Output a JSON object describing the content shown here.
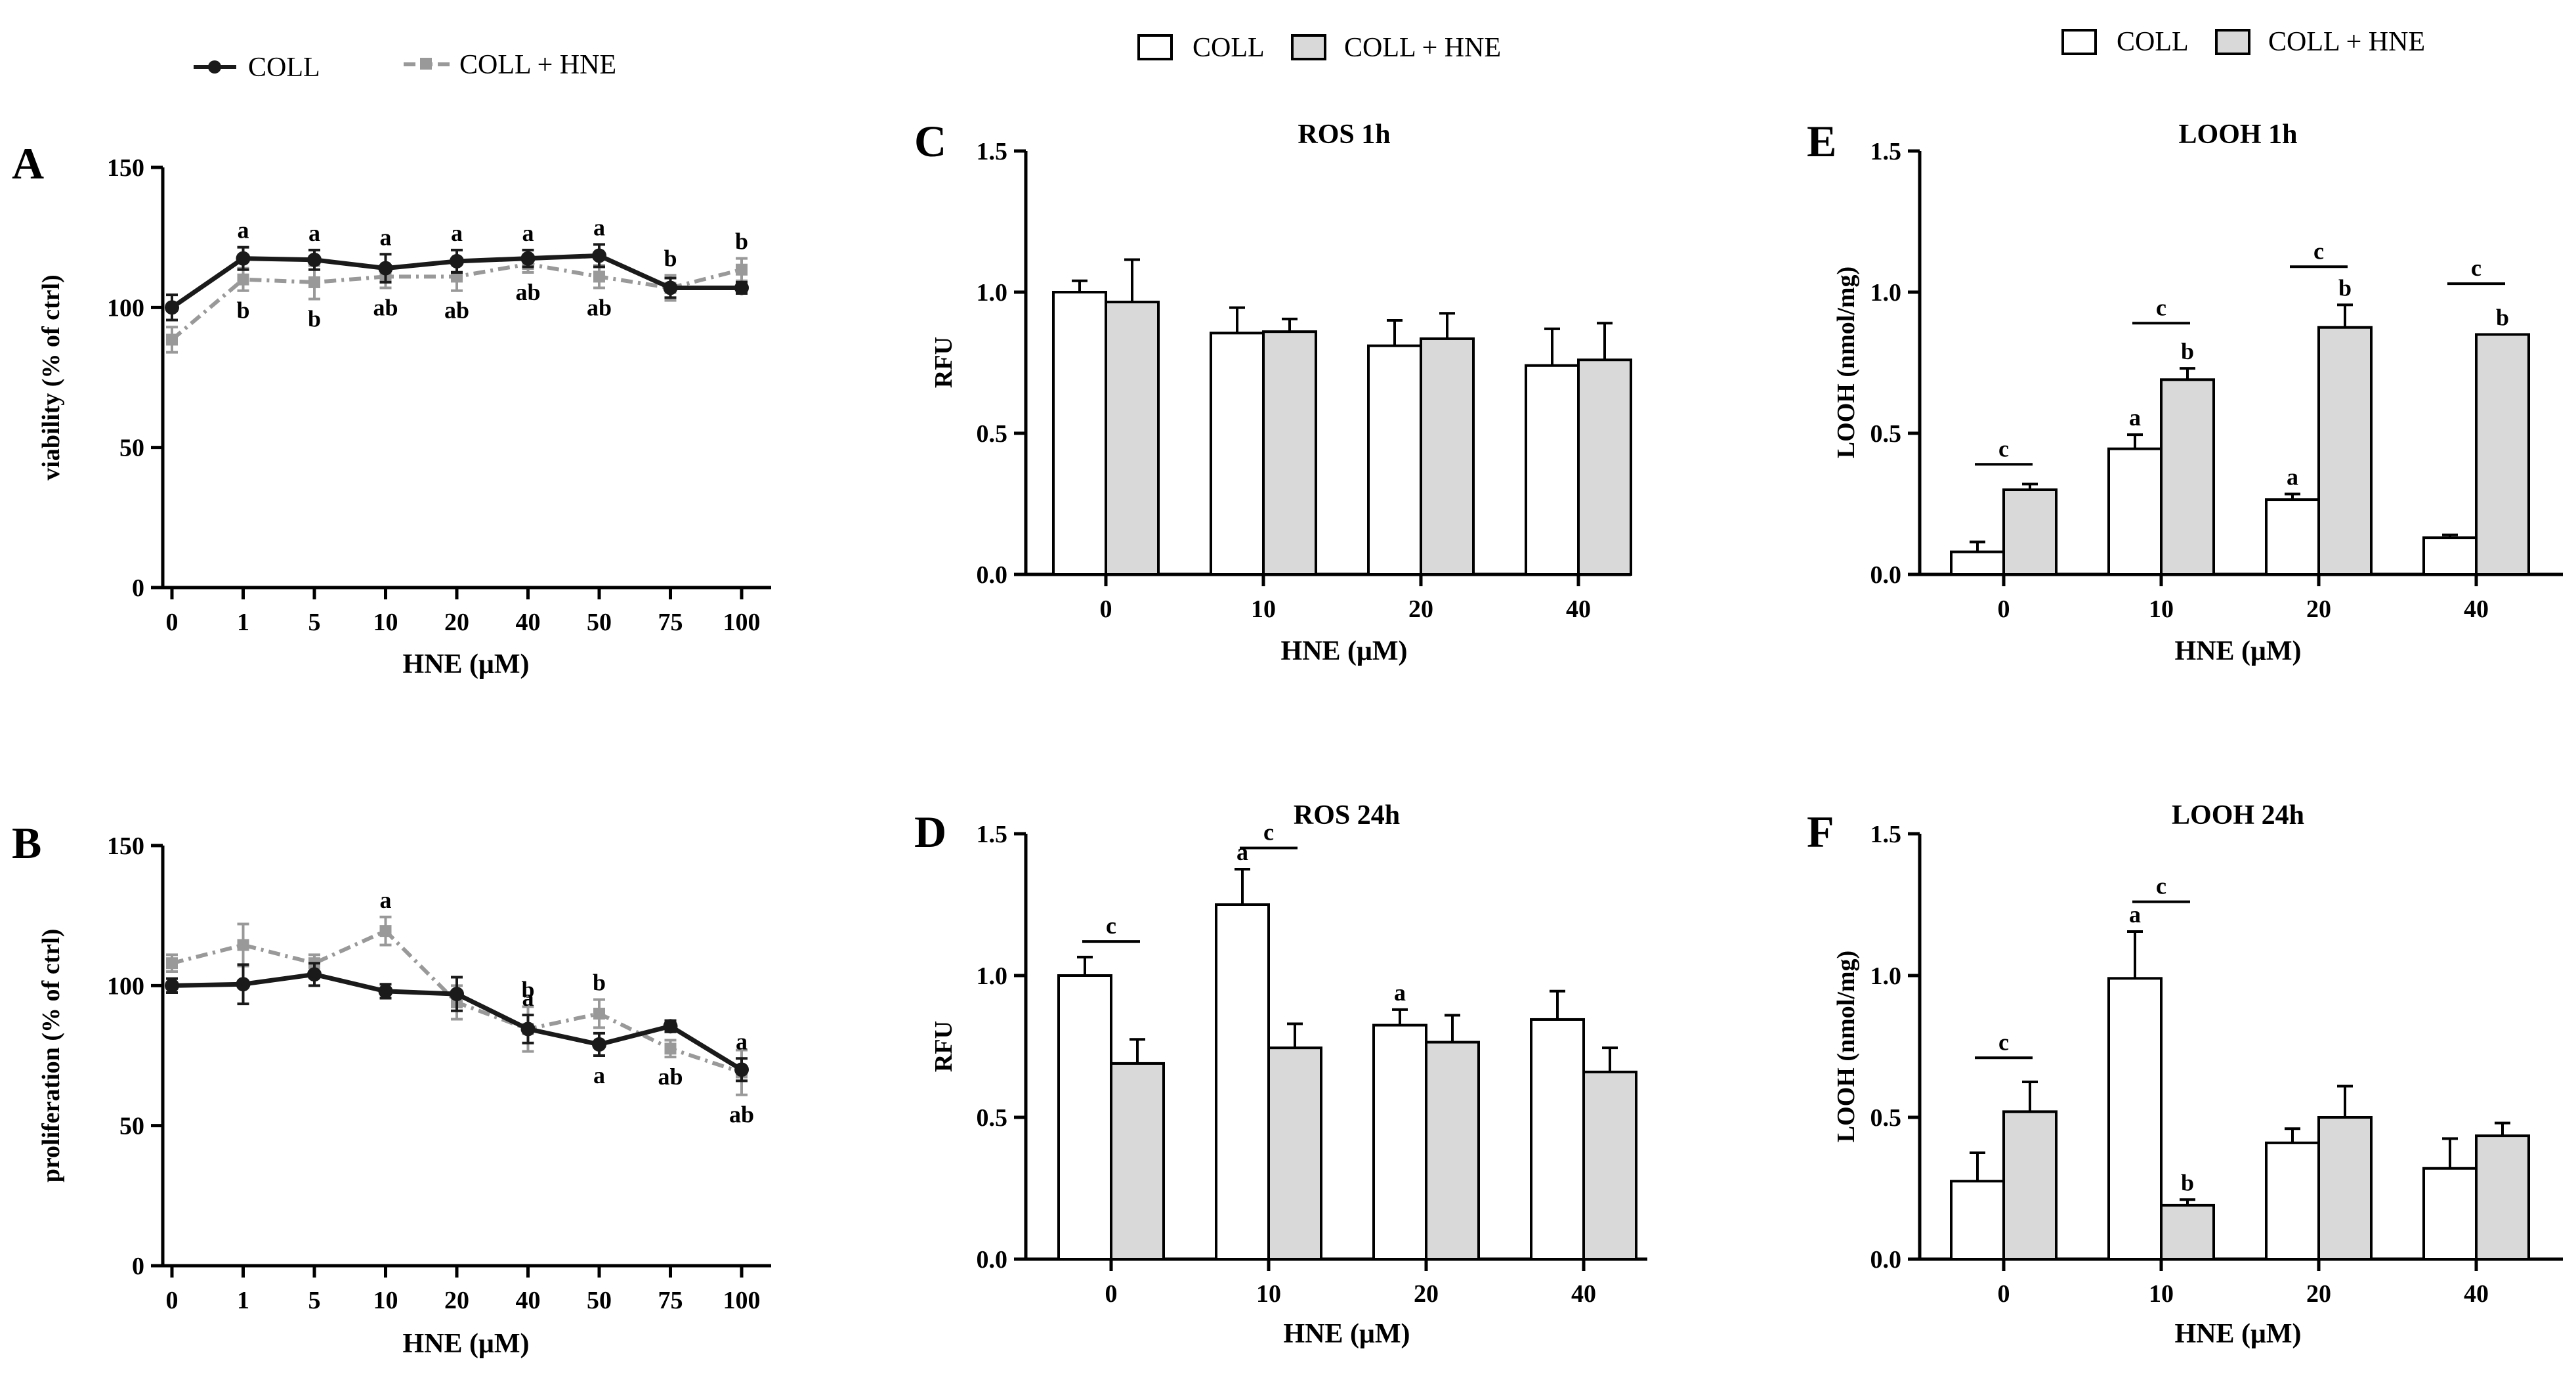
{
  "colors": {
    "coll": "#1a1a1a",
    "coll_hne": "#999999",
    "bar_coll": "#ffffff",
    "bar_hne": "#d9d9d9"
  },
  "legend_line": {
    "coll": "COLL",
    "coll_hne": "COLL + HNE"
  },
  "legend_bar": {
    "coll": "COLL",
    "coll_hne": "COLL + HNE"
  },
  "chart_data": [
    {
      "id": "A",
      "type": "line",
      "letter": "A",
      "title": "",
      "xlabel": "HNE (μM)",
      "ylabel": "viability (% of ctrl)",
      "categories": [
        "0",
        "1",
        "5",
        "10",
        "20",
        "40",
        "50",
        "75",
        "100"
      ],
      "ylim": [
        0,
        150
      ],
      "yticks": [
        0,
        50,
        100,
        150
      ],
      "series": [
        {
          "name": "COLL",
          "values": [
            100,
            117.5,
            117,
            114,
            116.5,
            117.5,
            118.5,
            107,
            107
          ],
          "errors": [
            4.5,
            4,
            3.5,
            5,
            4,
            3,
            4,
            3.5,
            2
          ],
          "labels": [
            "",
            "a",
            "a",
            "a",
            "a",
            "a",
            "a",
            "",
            ""
          ]
        },
        {
          "name": "COLL + HNE",
          "values": [
            88.5,
            110,
            109,
            111,
            111,
            115.5,
            111,
            107,
            113.5
          ],
          "errors": [
            4.5,
            4,
            6,
            4,
            5,
            3,
            4,
            4.5,
            4
          ],
          "labels": [
            "",
            "b",
            "b",
            "ab",
            "ab",
            "ab",
            "ab",
            "b",
            "b"
          ]
        }
      ]
    },
    {
      "id": "B",
      "type": "line",
      "letter": "B",
      "title": "",
      "xlabel": "HNE (μM)",
      "ylabel": "proliferation (% of  ctrl)",
      "categories": [
        "0",
        "1",
        "5",
        "10",
        "20",
        "40",
        "50",
        "75",
        "100"
      ],
      "ylim": [
        0,
        150
      ],
      "yticks": [
        0,
        50,
        100,
        150
      ],
      "series": [
        {
          "name": "COLL",
          "values": [
            100,
            100.5,
            104,
            98,
            97,
            84.5,
            79,
            85.5,
            70
          ],
          "errors": [
            2.5,
            7,
            4,
            2.5,
            6,
            5,
            4,
            2,
            4
          ],
          "labels": [
            "",
            "",
            "",
            "",
            "",
            "a",
            "a",
            "",
            "a"
          ]
        },
        {
          "name": "COLL + HNE",
          "values": [
            108,
            114.5,
            108,
            119.5,
            94,
            84.5,
            90,
            77.5,
            69
          ],
          "errors": [
            3,
            7.5,
            3,
            5,
            6,
            8,
            5,
            3,
            8
          ],
          "labels": [
            "",
            "",
            "",
            "a",
            "",
            "b",
            "b",
            "ab",
            "ab"
          ]
        }
      ]
    },
    {
      "id": "C",
      "type": "bar",
      "letter": "C",
      "title": "ROS 1h",
      "xlabel": "HNE  (μM)",
      "ylabel": "RFU",
      "categories": [
        "0",
        "10",
        "20",
        "40"
      ],
      "ylim": [
        0,
        1.5
      ],
      "yticks": [
        "0.0",
        "0.5",
        "1.0",
        "1.5"
      ],
      "series": [
        {
          "name": "COLL",
          "values": [
            1.0,
            0.855,
            0.81,
            0.74
          ],
          "errors": [
            0.04,
            0.09,
            0.09,
            0.13
          ],
          "labels": [
            "",
            "",
            "",
            ""
          ]
        },
        {
          "name": "COLL + HNE",
          "values": [
            0.965,
            0.86,
            0.835,
            0.76
          ],
          "errors": [
            0.15,
            0.045,
            0.09,
            0.13
          ],
          "labels": [
            "",
            "",
            "",
            ""
          ]
        }
      ],
      "brackets": []
    },
    {
      "id": "D",
      "type": "bar",
      "letter": "D",
      "title": "ROS 24h",
      "xlabel": "HNE  (μM)",
      "ylabel": "RFU",
      "categories": [
        "0",
        "10",
        "20",
        "40"
      ],
      "ylim": [
        0,
        1.5
      ],
      "yticks": [
        "0.0",
        "0.5",
        "1.0",
        "1.5"
      ],
      "series": [
        {
          "name": "COLL",
          "values": [
            1.0,
            1.25,
            0.825,
            0.845
          ],
          "errors": [
            0.065,
            0.125,
            0.055,
            0.1
          ],
          "labels": [
            "",
            "a",
            "a",
            ""
          ]
        },
        {
          "name": "COLL + HNE",
          "values": [
            0.69,
            0.745,
            0.765,
            0.66
          ],
          "errors": [
            0.085,
            0.085,
            0.095,
            0.085
          ],
          "labels": [
            "",
            "",
            "",
            ""
          ]
        }
      ],
      "brackets": [
        {
          "group": 0,
          "value": 1.12,
          "label": "c"
        },
        {
          "group": 1,
          "value": 1.45,
          "label": "c"
        }
      ]
    },
    {
      "id": "E",
      "type": "bar",
      "letter": "E",
      "title": "LOOH 1h",
      "xlabel": "HNE (μM)",
      "ylabel": "LOOH  (nmol/mg)",
      "categories": [
        "0",
        "10",
        "20",
        "40"
      ],
      "ylim": [
        0,
        1.5
      ],
      "yticks": [
        "0.0",
        "0.5",
        "1.0",
        "1.5"
      ],
      "series": [
        {
          "name": "COLL",
          "values": [
            0.08,
            0.445,
            0.265,
            0.13
          ],
          "errors": [
            0.035,
            0.05,
            0.02,
            0.01
          ],
          "labels": [
            "",
            "a",
            "a",
            ""
          ]
        },
        {
          "name": "COLL + HNE",
          "values": [
            0.3,
            0.69,
            0.875,
            0.85
          ],
          "errors": [
            0.02,
            0.04,
            0.08,
            0.0
          ],
          "labels": [
            "",
            "b",
            "b",
            "b"
          ]
        }
      ],
      "brackets": [
        {
          "group": 0,
          "value": 0.39,
          "label": "c"
        },
        {
          "group": 1,
          "value": 0.89,
          "label": "c"
        },
        {
          "group": 2,
          "value": 1.09,
          "label": "c"
        },
        {
          "group": 3,
          "value": 1.03,
          "label": "c"
        }
      ]
    },
    {
      "id": "F",
      "type": "bar",
      "letter": "F",
      "title": "LOOH 24h",
      "xlabel": "HNE (μM)",
      "ylabel": "LOOH  (nmol/mg)",
      "categories": [
        "0",
        "10",
        "20",
        "40"
      ],
      "ylim": [
        0,
        1.5
      ],
      "yticks": [
        "0.0",
        "0.5",
        "1.0",
        "1.5"
      ],
      "series": [
        {
          "name": "COLL",
          "values": [
            0.275,
            0.99,
            0.41,
            0.32
          ],
          "errors": [
            0.1,
            0.165,
            0.05,
            0.105
          ],
          "labels": [
            "",
            "a",
            "",
            ""
          ]
        },
        {
          "name": "COLL + HNE",
          "values": [
            0.52,
            0.19,
            0.5,
            0.435
          ],
          "errors": [
            0.105,
            0.02,
            0.11,
            0.045
          ],
          "labels": [
            "",
            "b",
            "",
            ""
          ]
        }
      ],
      "brackets": [
        {
          "group": 0,
          "value": 0.71,
          "label": "c"
        },
        {
          "group": 1,
          "value": 1.26,
          "label": "c"
        }
      ]
    }
  ]
}
